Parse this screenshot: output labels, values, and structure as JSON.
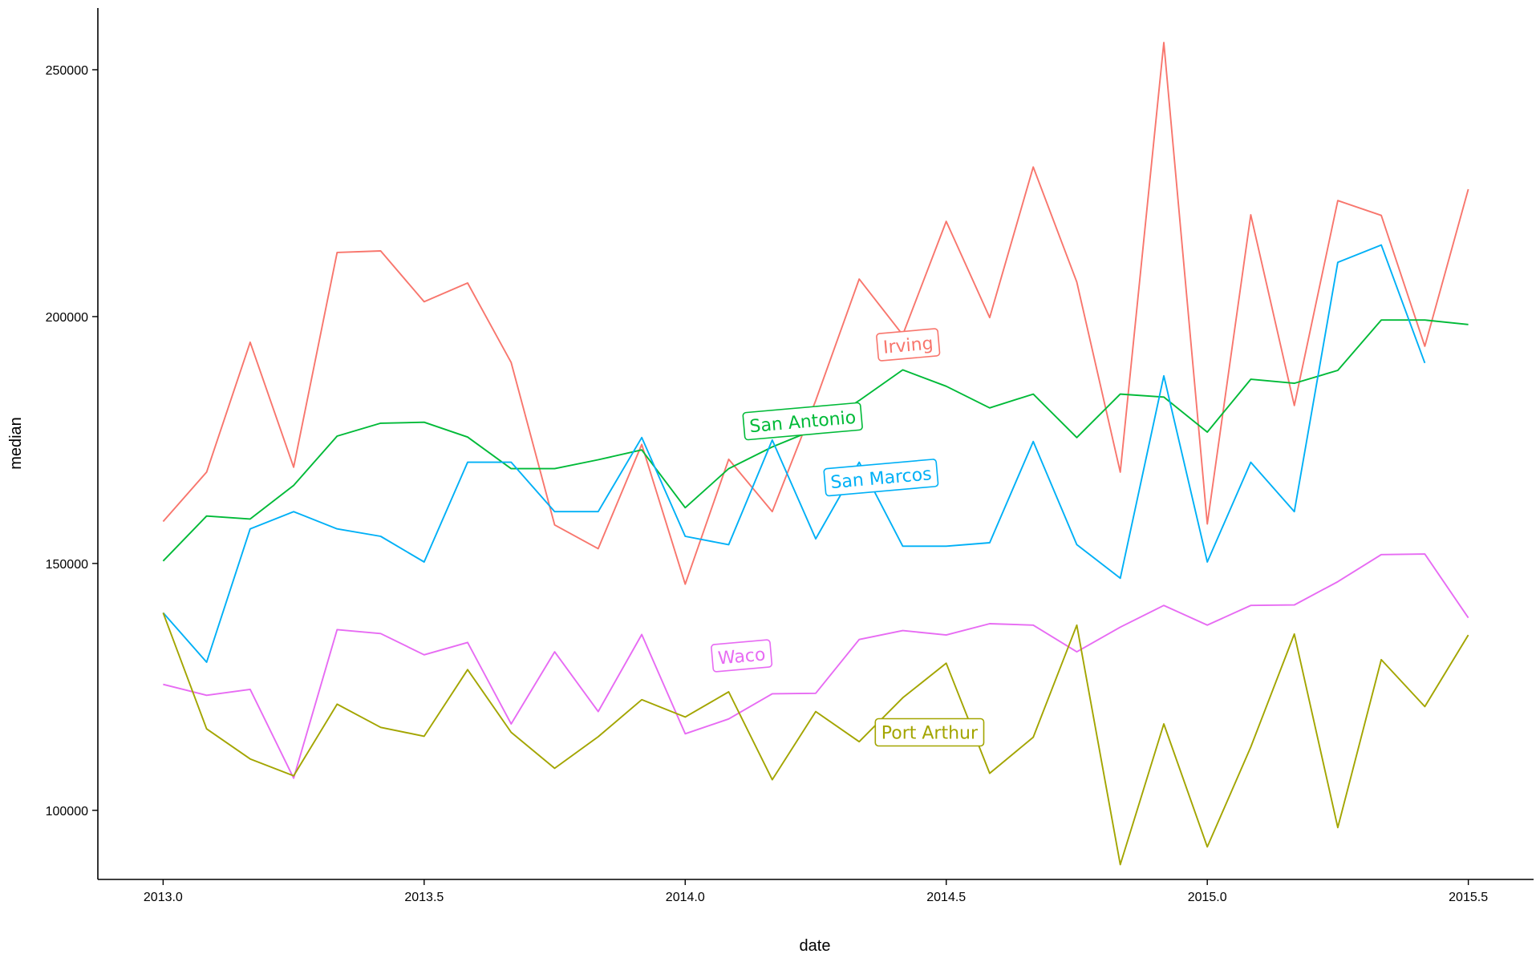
{
  "chart_data": {
    "type": "line",
    "title": "",
    "xlabel": "date",
    "ylabel": "median",
    "xlim": [
      2012.875,
      2015.625
    ],
    "ylim": [
      86000,
      262500
    ],
    "x_ticks": [
      "2013.0",
      "2013.5",
      "2014.0",
      "2014.5",
      "2015.0",
      "2015.5"
    ],
    "y_ticks": [
      "100000",
      "150000",
      "200000",
      "250000"
    ],
    "grid": false,
    "legend": "none (labels placed on lines)",
    "x": [
      2013.0,
      2013.0833,
      2013.1667,
      2013.25,
      2013.3333,
      2013.4167,
      2013.5,
      2013.5833,
      2013.6667,
      2013.75,
      2013.8333,
      2013.9167,
      2014.0,
      2014.0833,
      2014.1667,
      2014.25,
      2014.3333,
      2014.4167,
      2014.5,
      2014.5833,
      2014.6667,
      2014.75,
      2014.8333,
      2014.9167,
      2015.0,
      2015.0833,
      2015.1667,
      2015.25,
      2015.3333,
      2015.4167,
      2015.5
    ],
    "series": [
      {
        "name": "Irving",
        "color": "#F8766D",
        "values": [
          158500,
          168500,
          194800,
          169500,
          213000,
          213300,
          203000,
          206800,
          190700,
          157800,
          153000,
          174100,
          145800,
          171100,
          160500,
          183000,
          207600,
          196300,
          219300,
          199800,
          230300,
          207000,
          168500,
          255500,
          158000,
          220600,
          182000,
          223500,
          220500,
          194000,
          225800
        ]
      },
      {
        "name": "San Antonio",
        "color": "#00BA38",
        "values": [
          150500,
          159600,
          159000,
          165800,
          175800,
          178400,
          178600,
          175600,
          169200,
          169200,
          171000,
          173000,
          161300,
          169200,
          173600,
          177200,
          183000,
          189200,
          185900,
          181500,
          184300,
          175500,
          184300,
          183700,
          176600,
          187300,
          186500,
          189100,
          199300,
          199300,
          198400
        ]
      },
      {
        "name": "San Marcos",
        "color": "#00B0F6",
        "values": [
          140000,
          130000,
          157000,
          160500,
          157000,
          155500,
          150300,
          170500,
          170500,
          160500,
          160500,
          175500,
          155500,
          153800,
          175000,
          155000,
          170500,
          153500,
          153500,
          154200,
          174700,
          153800,
          147000,
          188000,
          150300,
          170500,
          160500,
          211000,
          214500,
          190600,
          null
        ]
      },
      {
        "name": "Waco",
        "color": "#E76BF3",
        "values": [
          125500,
          123300,
          124500,
          106500,
          136600,
          135800,
          131500,
          134000,
          117500,
          132100,
          120000,
          135600,
          115500,
          118500,
          123600,
          123700,
          134600,
          136400,
          135500,
          137800,
          137500,
          132100,
          137100,
          141500,
          137500,
          141500,
          141600,
          146300,
          151800,
          151900,
          139000
        ]
      },
      {
        "name": "Port Arthur",
        "color": "#A3A500",
        "values": [
          140000,
          116500,
          110400,
          107000,
          121500,
          116800,
          115000,
          128500,
          115800,
          108500,
          114900,
          122400,
          118900,
          124000,
          106200,
          120000,
          113900,
          122800,
          129800,
          107500,
          114800,
          137500,
          89000,
          117500,
          92600,
          112800,
          135700,
          96500,
          130500,
          121000,
          135500
        ]
      }
    ],
    "annotations": [
      {
        "text": "Irving",
        "series": "Irving",
        "x": 2014.427,
        "y": 194300,
        "angle": -5
      },
      {
        "text": "San Antonio",
        "series": "San Antonio",
        "x": 2014.225,
        "y": 178800,
        "angle": -5
      },
      {
        "text": "San Marcos",
        "series": "San Marcos",
        "x": 2014.375,
        "y": 167400,
        "angle": -5
      },
      {
        "text": "Waco",
        "series": "Waco",
        "x": 2014.108,
        "y": 131300,
        "angle": -5
      },
      {
        "text": "Port Arthur",
        "series": "Port Arthur",
        "x": 2014.468,
        "y": 115800,
        "angle": 0
      }
    ]
  }
}
